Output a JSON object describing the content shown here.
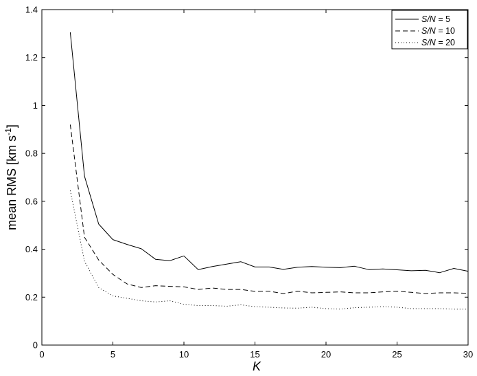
{
  "chart_data": {
    "type": "line",
    "title": "",
    "xlabel": "K",
    "ylabel_main": "mean RMS [km s",
    "ylabel_sup": "-1",
    "ylabel_close": "]",
    "xlim": [
      0,
      30
    ],
    "ylim": [
      0,
      1.4
    ],
    "xticks": [
      "0",
      "5",
      "10",
      "15",
      "20",
      "25",
      "30"
    ],
    "yticks": [
      "0",
      "0.2",
      "0.4",
      "0.6",
      "0.8",
      "1",
      "1.2",
      "1.4"
    ],
    "grid": false,
    "legend_position": "top-right",
    "x": [
      2,
      3,
      4,
      5,
      6,
      7,
      8,
      9,
      10,
      11,
      12,
      13,
      14,
      15,
      16,
      17,
      18,
      19,
      20,
      21,
      22,
      23,
      24,
      25,
      26,
      27,
      28,
      29,
      30
    ],
    "series": [
      {
        "name": "S/N = 5",
        "name_prefix": "S/N",
        "name_suffix": " = 5",
        "style": "solid",
        "values": [
          1.305,
          0.705,
          0.505,
          0.44,
          0.42,
          0.402,
          0.358,
          0.352,
          0.372,
          0.315,
          0.328,
          0.338,
          0.348,
          0.326,
          0.326,
          0.316,
          0.325,
          0.328,
          0.325,
          0.323,
          0.329,
          0.315,
          0.318,
          0.314,
          0.31,
          0.312,
          0.302,
          0.32,
          0.308
        ]
      },
      {
        "name": "S/N = 10",
        "name_prefix": "S/N",
        "name_suffix": " = 10",
        "style": "dashed",
        "values": [
          0.92,
          0.45,
          0.355,
          0.295,
          0.255,
          0.24,
          0.248,
          0.245,
          0.243,
          0.232,
          0.238,
          0.232,
          0.232,
          0.224,
          0.225,
          0.215,
          0.225,
          0.218,
          0.22,
          0.222,
          0.218,
          0.218,
          0.222,
          0.225,
          0.22,
          0.215,
          0.218,
          0.218,
          0.216
        ]
      },
      {
        "name": "S/N = 20",
        "name_prefix": "S/N",
        "name_suffix": " = 20",
        "style": "dotted",
        "values": [
          0.645,
          0.35,
          0.24,
          0.205,
          0.195,
          0.185,
          0.18,
          0.185,
          0.17,
          0.165,
          0.165,
          0.162,
          0.168,
          0.16,
          0.158,
          0.155,
          0.154,
          0.158,
          0.152,
          0.15,
          0.156,
          0.158,
          0.16,
          0.158,
          0.152,
          0.152,
          0.152,
          0.15,
          0.15
        ]
      }
    ]
  }
}
